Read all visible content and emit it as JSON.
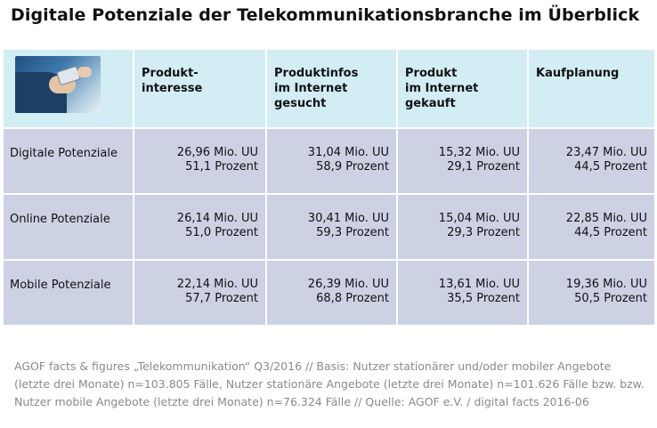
{
  "title": "Digitale Potenziale der Telekommunikationsbranche im Überblick",
  "header_image_icon": "person-using-smartphone-photo",
  "columns": [
    "Produkt-\ninteresse",
    "Produktinfos\nim Internet\ngesucht",
    "Produkt\nim Internet\ngekauft",
    "Kaufplanung"
  ],
  "rows": [
    {
      "label": "Digitale Potenziale",
      "cells": [
        {
          "uu": "26,96 Mio. UU",
          "pct": "51,1 Prozent"
        },
        {
          "uu": "31,04 Mio. UU",
          "pct": "58,9 Prozent"
        },
        {
          "uu": "15,32 Mio. UU",
          "pct": "29,1 Prozent"
        },
        {
          "uu": "23,47 Mio. UU",
          "pct": "44,5 Prozent"
        }
      ]
    },
    {
      "label": "Online Potenziale",
      "cells": [
        {
          "uu": "26,14 Mio. UU",
          "pct": "51,0 Prozent"
        },
        {
          "uu": "30,41 Mio. UU",
          "pct": "59,3 Prozent"
        },
        {
          "uu": "15,04 Mio. UU",
          "pct": "29,3 Prozent"
        },
        {
          "uu": "22,85 Mio. UU",
          "pct": "44,5 Prozent"
        }
      ]
    },
    {
      "label": "Mobile Potenziale",
      "cells": [
        {
          "uu": "22,14 Mio. UU",
          "pct": "57,7 Prozent"
        },
        {
          "uu": "26,39 Mio. UU",
          "pct": "68,8 Prozent"
        },
        {
          "uu": "13,61 Mio. UU",
          "pct": "35,5 Prozent"
        },
        {
          "uu": "19,36 Mio. UU",
          "pct": "50,5 Prozent"
        }
      ]
    }
  ],
  "source": "AGOF facts & figures „Telekommunikation“ Q3/2016 // Basis: Nutzer stationärer und/oder mobiler Angebote (letzte drei Monate) n=103.805 Fälle, Nutzer stationäre Angebote (letzte drei Monate) n=101.626 Fälle bzw. bzw. Nutzer mobile Angebote (letzte drei Monate) n=76.324 Fälle // Quelle: AGOF e.V. / digital facts 2016-06",
  "colors": {
    "header_bg": "#d2edf3",
    "row_bg": "#ccd2e4",
    "source_text": "#8a8a8a"
  }
}
